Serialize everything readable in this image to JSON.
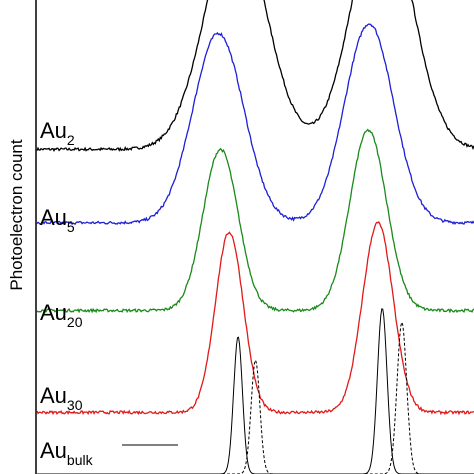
{
  "chart_data": {
    "type": "line",
    "title": "",
    "xlabel": "",
    "ylabel": "Photoelectron count",
    "grid": false,
    "legend": "none",
    "series": [
      {
        "name": "Au2",
        "label_main": "Au",
        "label_sub": "2",
        "color": "#000000",
        "baseline": 0.685,
        "peaks": [
          {
            "center": 0.455,
            "height": 0.48,
            "width": 0.07
          },
          {
            "center": 0.79,
            "height": 0.52,
            "width": 0.068
          }
        ]
      },
      {
        "name": "Au5",
        "label_main": "Au",
        "label_sub": "5",
        "color": "#1f1fd6",
        "baseline": 0.53,
        "peaks": [
          {
            "center": 0.415,
            "height": 0.4,
            "width": 0.058
          },
          {
            "center": 0.76,
            "height": 0.42,
            "width": 0.056
          }
        ]
      },
      {
        "name": "Au20",
        "label_main": "Au",
        "label_sub": "20",
        "color": "#1a8a1a",
        "baseline": 0.345,
        "peaks": [
          {
            "center": 0.42,
            "height": 0.34,
            "width": 0.04
          },
          {
            "center": 0.758,
            "height": 0.38,
            "width": 0.042
          }
        ]
      },
      {
        "name": "Au30",
        "label_main": "Au",
        "label_sub": "30",
        "color": "#e01a1a",
        "baseline": 0.13,
        "peaks": [
          {
            "center": 0.44,
            "height": 0.38,
            "width": 0.032
          },
          {
            "center": 0.78,
            "height": 0.4,
            "width": 0.035
          }
        ]
      },
      {
        "name": "Au bulk (solid)",
        "label_main": "Au",
        "label_sub": "bulk",
        "color": "#000000",
        "dash": "solid",
        "baseline": 0.0,
        "peaks": [
          {
            "center": 0.46,
            "height": 0.29,
            "width": 0.01
          },
          {
            "center": 0.79,
            "height": 0.35,
            "width": 0.011
          }
        ]
      },
      {
        "name": "Au bulk (dashed)",
        "color": "#000000",
        "dash": "dashed",
        "baseline": 0.0,
        "peaks": [
          {
            "center": 0.5,
            "height": 0.24,
            "width": 0.01
          },
          {
            "center": 0.835,
            "height": 0.32,
            "width": 0.011
          }
        ]
      }
    ]
  }
}
